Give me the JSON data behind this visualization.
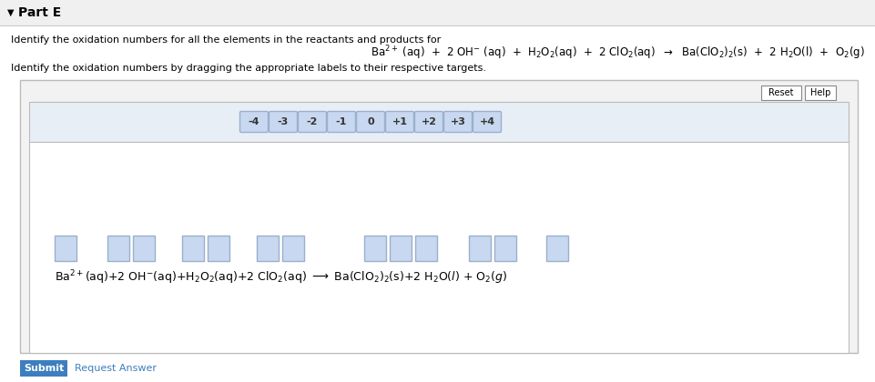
{
  "title": "Part E",
  "instruction1": "Identify the oxidation numbers for all the elements in the reactants and products for",
  "equation_top": "Ba$^{2+}$ (aq)  +  2 OH$^{-}$ (aq)  +  H$_2$O$_2$(aq)  +  2 ClO$_2$(aq)  →  Ba(ClO$_2$)$_2$(s)  +  2 H$_2$O(l)  +  O$_2$(g)",
  "instruction2": "Identify the oxidation numbers by dragging the appropriate labels to their respective targets.",
  "labels": [
    "-4",
    "-3",
    "-2",
    "-1",
    "0",
    "+1",
    "+2",
    "+3",
    "+4"
  ],
  "label_bg": "#c8d8f0",
  "label_border": "#9ab0cc",
  "bg_page": "#ffffff",
  "bg_outer": "#f2f2f2",
  "bg_label_area": "#e8eef6",
  "bg_eq_area": "#ffffff",
  "box_color": "#c8d8f0",
  "box_border": "#9ab0cc",
  "outer_border": "#bbbbbb",
  "submit_bg": "#3d7ebf",
  "submit_text": "Submit",
  "request_text": "Request Answer",
  "arrow_triangle": "▼",
  "font_size_title": 10,
  "font_size_eq_top": 8.5,
  "font_size_label": 8,
  "font_size_instr": 8,
  "font_size_eq_bot": 9
}
